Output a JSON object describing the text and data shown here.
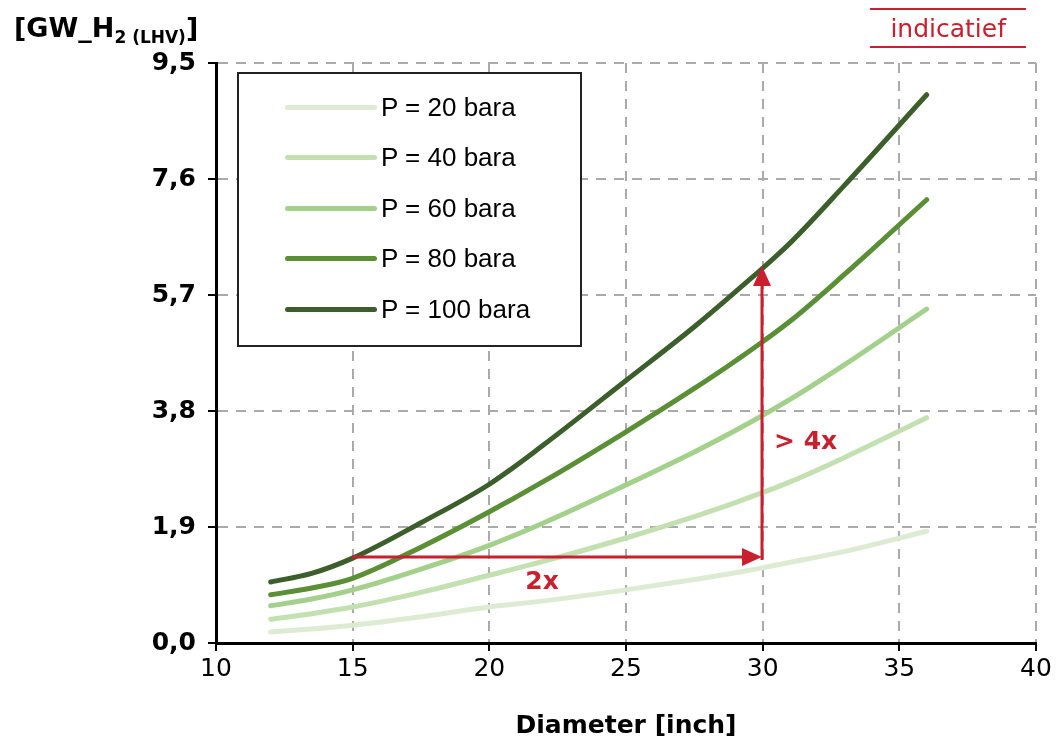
{
  "chart_data": {
    "type": "line",
    "ylabel": "[GW_H$_{2 (LHV)}$]",
    "xlabel": "Diameter [inch]",
    "x": [
      12,
      13.5,
      15,
      17.5,
      20,
      22,
      25,
      27.5,
      29,
      31,
      33,
      36
    ],
    "series": [
      {
        "name": "P = 20 bara",
        "color": "#dcebd2",
        "values": [
          0.18,
          0.23,
          0.29,
          0.43,
          0.59,
          0.69,
          0.87,
          1.04,
          1.15,
          1.32,
          1.5,
          1.83
        ]
      },
      {
        "name": "P = 40 bara",
        "color": "#c3e0b0",
        "values": [
          0.39,
          0.48,
          0.59,
          0.83,
          1.11,
          1.34,
          1.72,
          2.07,
          2.3,
          2.64,
          3.04,
          3.69
        ]
      },
      {
        "name": "P = 60 bara",
        "color": "#a3d18b",
        "values": [
          0.61,
          0.72,
          0.87,
          1.21,
          1.6,
          1.97,
          2.59,
          3.13,
          3.48,
          3.99,
          4.56,
          5.47
        ]
      },
      {
        "name": "P = 80 bara",
        "color": "#5a8f36",
        "values": [
          0.79,
          0.9,
          1.06,
          1.57,
          2.15,
          2.65,
          3.46,
          4.17,
          4.62,
          5.27,
          6.04,
          7.26
        ]
      },
      {
        "name": "P = 100 bara",
        "color": "#3b5e2b",
        "values": [
          1.0,
          1.14,
          1.39,
          1.97,
          2.6,
          3.25,
          4.3,
          5.18,
          5.75,
          6.55,
          7.5,
          8.98
        ]
      }
    ],
    "xlim": [
      10,
      40
    ],
    "xticks": [
      10,
      15,
      20,
      25,
      30,
      35,
      40
    ],
    "ylim": [
      0,
      9.5
    ],
    "yticks": [
      {
        "value": 0,
        "label": "0,0"
      },
      {
        "value": 1.9,
        "label": "1,9"
      },
      {
        "value": 3.8,
        "label": "3,8"
      },
      {
        "value": 5.7,
        "label": "5,7"
      },
      {
        "value": 7.6,
        "label": "7,6"
      },
      {
        "value": 9.5,
        "label": "9,5"
      }
    ],
    "grid": true,
    "legend": "top left",
    "marker": "none",
    "line_style": "solid",
    "annotations": [
      "2x",
      "> 4x",
      "indicatief"
    ]
  }
}
